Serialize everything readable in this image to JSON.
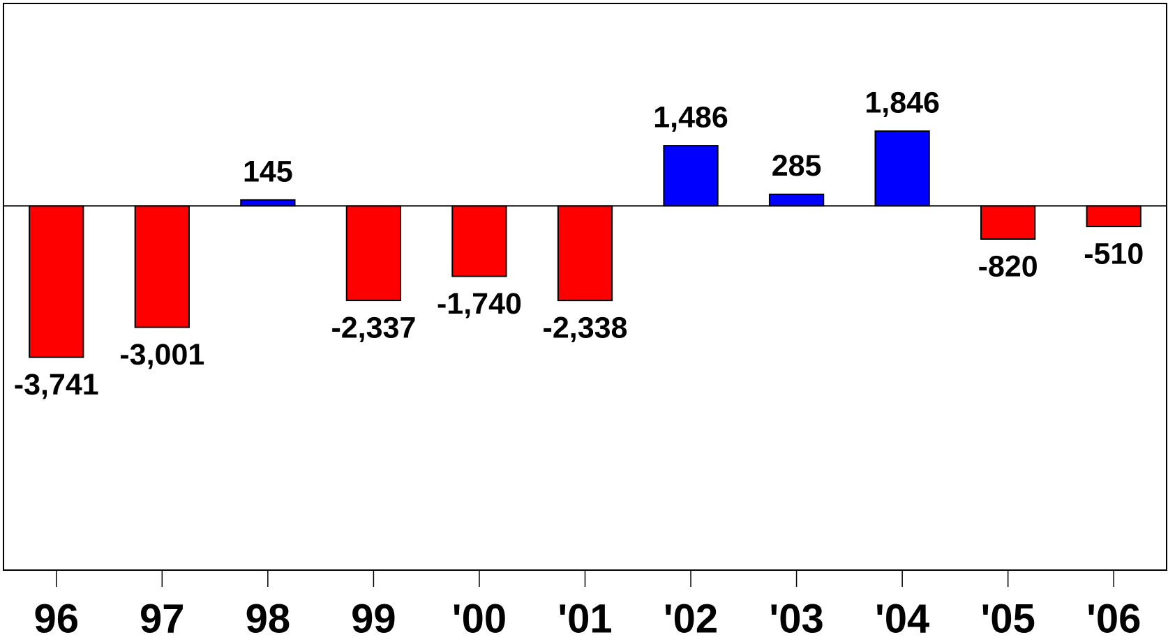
{
  "chart_data": {
    "type": "bar",
    "categories": [
      "96",
      "97",
      "98",
      "99",
      "'00",
      "'01",
      "'02",
      "'03",
      "'04",
      "'05",
      "'06"
    ],
    "values": [
      -3741,
      -3001,
      145,
      -2337,
      -1740,
      -2338,
      1486,
      285,
      1846,
      -820,
      -510
    ],
    "value_labels": [
      "-3,741",
      "-3,001",
      "145",
      "-2,337",
      "-1,740",
      "-2,338",
      "1,486",
      "285",
      "1,846",
      "-820",
      "-510"
    ],
    "positive_color": "#0000ff",
    "negative_color": "#ff0000",
    "ylim": [
      -9000,
      5000
    ]
  }
}
